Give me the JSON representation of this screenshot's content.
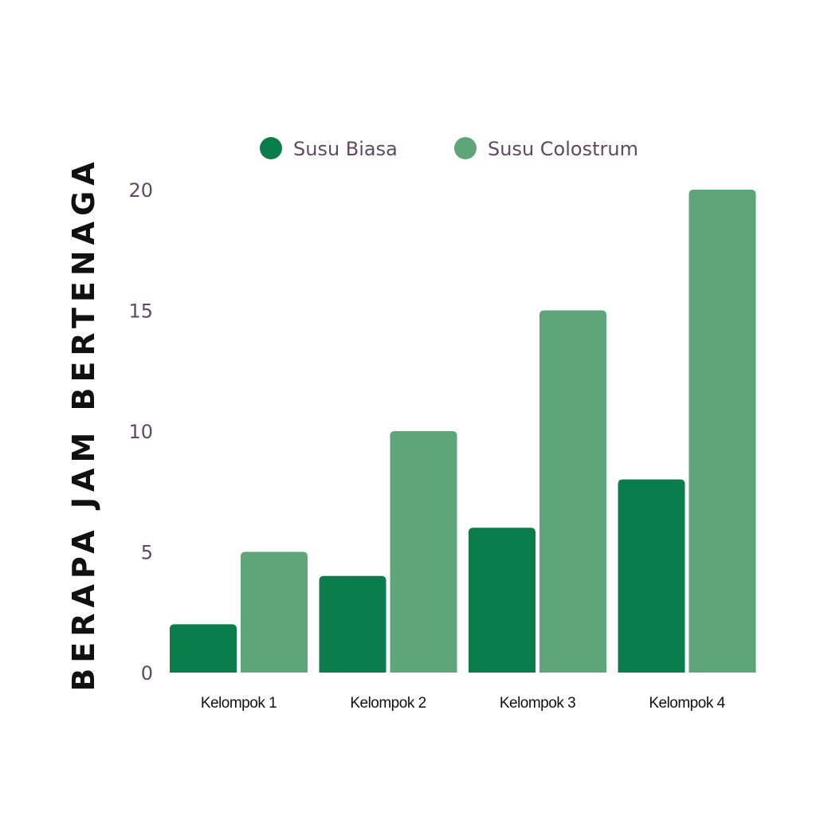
{
  "chart_data": {
    "type": "bar",
    "title": "",
    "xlabel": "",
    "ylabel": "BERAPA JAM BERTENAGA",
    "categories": [
      "Kelompok 1",
      "Kelompok 2",
      "Kelompok 3",
      "Kelompok 4"
    ],
    "series": [
      {
        "name": "Susu Biasa",
        "values": [
          2,
          4,
          6,
          8
        ],
        "color": "#0b7d4d"
      },
      {
        "name": "Susu Colostrum",
        "values": [
          5,
          10,
          15,
          20
        ],
        "color": "#5fa57a"
      }
    ],
    "ylim": [
      0,
      20
    ],
    "yticks": [
      "0",
      "5",
      "10",
      "15",
      "20"
    ],
    "grid": false,
    "legend": "top-center"
  }
}
